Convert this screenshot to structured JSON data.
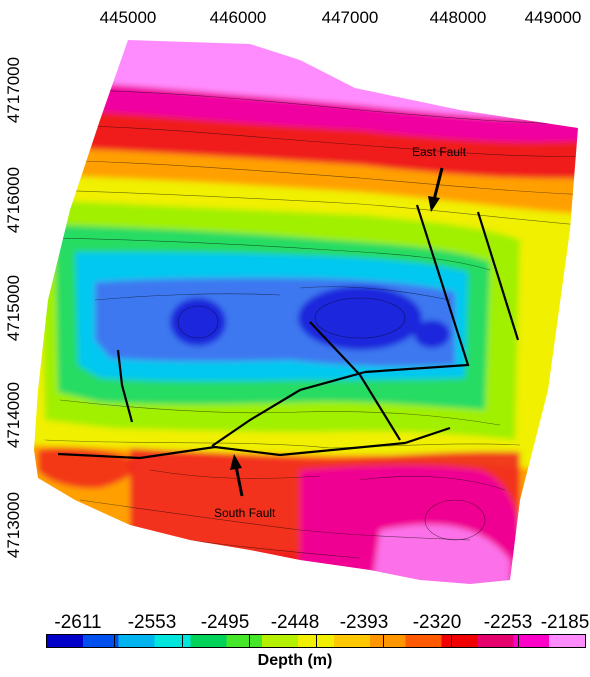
{
  "map": {
    "x_ticks": [
      "445000",
      "446000",
      "447000",
      "448000",
      "449000"
    ],
    "y_ticks": [
      "4717000",
      "4716000",
      "4715000",
      "4714000",
      "4713000"
    ],
    "annotations": {
      "east_fault": "East Fault",
      "south_fault": "South Fault"
    },
    "colorbar": {
      "labels": [
        "-2611",
        "-2553",
        "-2495",
        "-2448",
        "-2393",
        "-2320",
        "-2253",
        "-2185"
      ],
      "title": "Depth (m)",
      "colors": [
        "#0000c8",
        "#0050f0",
        "#00b4f0",
        "#00e6dc",
        "#00d25a",
        "#46e628",
        "#b4f000",
        "#f0f000",
        "#ffc800",
        "#ff9600",
        "#ff5a00",
        "#f00000",
        "#e6006e",
        "#ff00c8",
        "#ff8cff"
      ]
    },
    "colors": {
      "deep": "#1e28dc",
      "blue": "#3c78f0",
      "cyan": "#00c8f0",
      "green": "#28dc64",
      "lime": "#a0f000",
      "yellow": "#f0f000",
      "orange": "#ffa000",
      "red": "#f01e1e",
      "magenta": "#f000a0",
      "pink": "#ff8cff"
    }
  }
}
